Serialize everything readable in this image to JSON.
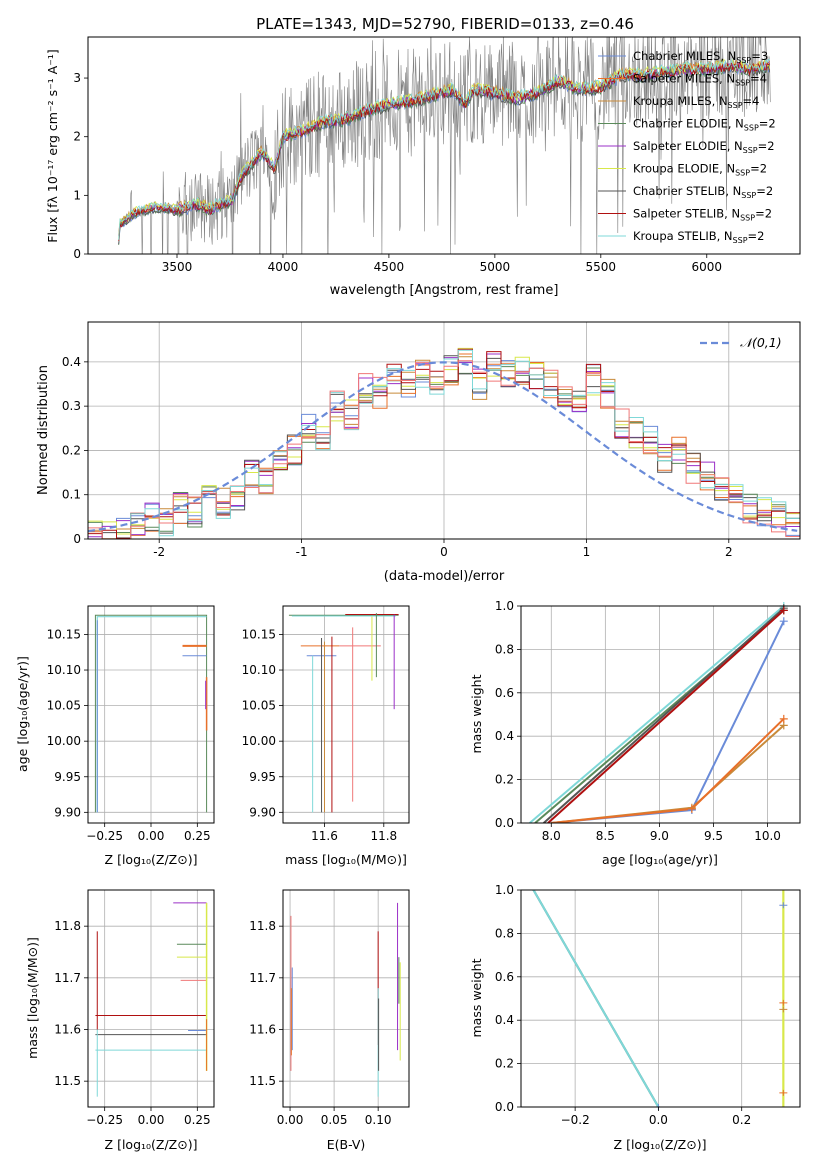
{
  "figure": {
    "title": "PLATE=1343, MJD=52790, FIBERID=0133, z=0.46"
  },
  "chart_data": [
    {
      "id": "spectrum",
      "type": "line",
      "title": "PLATE=1343, MJD=52790, FIBERID=0133, z=0.46",
      "xlabel": "wavelength [Angstrom, rest frame]",
      "ylabel": "Flux [fλ 10⁻¹⁷ erg cm⁻² s⁻¹ A⁻¹]",
      "xlim": [
        3080,
        6440
      ],
      "ylim": [
        0,
        3.7
      ],
      "xticks": [
        3500,
        4000,
        4500,
        5000,
        5500,
        6000
      ],
      "yticks": [
        0,
        1,
        2,
        3
      ],
      "x_range_data": [
        3220,
        6300
      ],
      "legend_position": "upper right",
      "series": [
        {
          "name": "Chabrier MILES, N_SSP=3",
          "color": "#6a8bd8"
        },
        {
          "name": "Salpeter MILES, N_SSP=4",
          "color": "#e8702a"
        },
        {
          "name": "Kroupa MILES, N_SSP=4",
          "color": "#c88a3a"
        },
        {
          "name": "Chabrier ELODIE, N_SSP=2",
          "color": "#5a8a5a"
        },
        {
          "name": "Salpeter ELODIE, N_SSP=2",
          "color": "#9b30c8"
        },
        {
          "name": "Kroupa ELODIE, N_SSP=2",
          "color": "#d8e84a"
        },
        {
          "name": "Chabrier STELIB, N_SSP=2",
          "color": "#555555"
        },
        {
          "name": "Salpeter STELIB, N_SSP=2",
          "color": "#b01010"
        },
        {
          "name": "Kroupa STELIB, N_SSP=2",
          "color": "#7fd8d8"
        }
      ],
      "data_series": {
        "name": "data",
        "color": "#808080"
      },
      "model_profile": {
        "x": [
          3220,
          3230,
          3300,
          3400,
          3500,
          3600,
          3650,
          3700,
          3760,
          3800,
          3900,
          3960,
          4000,
          4100,
          4200,
          4300,
          4400,
          4500,
          4600,
          4700,
          4800,
          4860,
          4900,
          5000,
          5100,
          5200,
          5300,
          5400,
          5500,
          5600,
          5700,
          5800,
          5900,
          6000,
          6100,
          6200,
          6300
        ],
        "y": [
          0.0,
          0.5,
          0.7,
          0.8,
          0.75,
          0.85,
          0.75,
          0.85,
          0.9,
          1.3,
          1.75,
          1.45,
          2.0,
          2.1,
          2.25,
          2.3,
          2.45,
          2.55,
          2.6,
          2.7,
          2.8,
          2.55,
          2.8,
          2.75,
          2.65,
          2.75,
          2.95,
          2.8,
          2.85,
          3.05,
          3.05,
          3.1,
          3.15,
          3.15,
          3.2,
          3.15,
          3.2
        ]
      }
    },
    {
      "id": "residuals",
      "type": "line",
      "xlabel": "(data-model)/error",
      "ylabel": "Normed distribution",
      "xlim": [
        -2.5,
        2.5
      ],
      "ylim": [
        0,
        0.49
      ],
      "xticks": [
        -2,
        -1,
        0,
        1,
        2
      ],
      "yticks": [
        0.0,
        0.1,
        0.2,
        0.3,
        0.4
      ],
      "grid": true,
      "legend_position": "upper right",
      "reference_curve": {
        "name": "𝒩(0,1)",
        "color": "#6a8bd8",
        "style": "dashed",
        "mu": 0,
        "sigma": 1
      },
      "histogram_bin_width": 0.1,
      "histogram_base": {
        "x_centers": [
          -2.45,
          -2.35,
          -2.25,
          -2.15,
          -2.05,
          -1.95,
          -1.85,
          -1.75,
          -1.65,
          -1.55,
          -1.45,
          -1.35,
          -1.25,
          -1.15,
          -1.05,
          -0.95,
          -0.85,
          -0.75,
          -0.65,
          -0.55,
          -0.45,
          -0.35,
          -0.25,
          -0.15,
          -0.05,
          0.05,
          0.15,
          0.25,
          0.35,
          0.45,
          0.55,
          0.65,
          0.75,
          0.85,
          0.95,
          1.05,
          1.15,
          1.25,
          1.35,
          1.45,
          1.55,
          1.65,
          1.75,
          1.85,
          1.95,
          2.05,
          2.15,
          2.25,
          2.35,
          2.45
        ],
        "values": [
          0.01,
          0.01,
          0.02,
          0.03,
          0.05,
          0.04,
          0.07,
          0.06,
          0.09,
          0.08,
          0.1,
          0.15,
          0.13,
          0.18,
          0.2,
          0.25,
          0.22,
          0.3,
          0.28,
          0.34,
          0.33,
          0.36,
          0.35,
          0.37,
          0.36,
          0.38,
          0.4,
          0.35,
          0.39,
          0.37,
          0.38,
          0.37,
          0.35,
          0.32,
          0.3,
          0.36,
          0.33,
          0.26,
          0.24,
          0.22,
          0.18,
          0.2,
          0.16,
          0.14,
          0.11,
          0.09,
          0.07,
          0.06,
          0.05,
          0.04
        ]
      },
      "histogram_colors": [
        "#6a8bd8",
        "#e8702a",
        "#c88a3a",
        "#5a8a5a",
        "#9b30c8",
        "#d8e84a",
        "#555555",
        "#b01010",
        "#7fd8d8",
        "#f07878"
      ]
    },
    {
      "id": "age-vs-Z",
      "type": "scatter",
      "xlabel": "Z [log₁₀(Z/Z⊙)]",
      "ylabel": "age  [log₁₀(age/yr)]",
      "xlim": [
        -0.34,
        0.34
      ],
      "ylim": [
        9.885,
        10.19
      ],
      "xticks": [
        -0.25,
        0.0,
        0.25
      ],
      "xtick_labels": [
        "−0.25",
        "0.00",
        "0.25"
      ],
      "yticks": [
        9.9,
        9.95,
        10.0,
        10.05,
        10.1,
        10.15
      ],
      "ytick_labels": [
        "9.90",
        "9.95",
        "10.00",
        "10.05",
        "10.10",
        "10.15"
      ],
      "grid": true
    },
    {
      "id": "age-vs-mass",
      "type": "scatter",
      "xlabel": "mass [log₁₀(M/M⊙)]",
      "ylabel": "",
      "xlim": [
        11.46,
        11.885
      ],
      "ylim": [
        9.885,
        10.19
      ],
      "xticks": [
        11.6,
        11.8
      ],
      "xtick_labels": [
        "11.6",
        "11.8"
      ],
      "yticks": [
        9.9,
        9.95,
        10.0,
        10.05,
        10.1,
        10.15
      ],
      "ytick_labels": [
        "9.90",
        "9.95",
        "10.00",
        "10.05",
        "10.10",
        "10.15"
      ],
      "grid": true
    },
    {
      "id": "mass-weight-vs-age",
      "type": "line",
      "xlabel": "age  [log₁₀(age/yr)]",
      "ylabel": "mass weight",
      "xlim": [
        7.72,
        10.3
      ],
      "ylim": [
        0,
        1
      ],
      "xticks": [
        8.0,
        8.5,
        9.0,
        9.5,
        10.0
      ],
      "xtick_labels": [
        "8.0",
        "8.5",
        "9.0",
        "9.5",
        "10.0"
      ],
      "yticks": [
        0.0,
        0.2,
        0.4,
        0.6,
        0.8,
        1.0
      ],
      "ytick_labels": [
        "0.0",
        "0.2",
        "0.4",
        "0.6",
        "0.8",
        "1.0"
      ],
      "grid": true,
      "series": [
        {
          "x": [
            7.8,
            10.15
          ],
          "y": [
            0,
            1.0
          ],
          "color": "#7fd8d8"
        },
        {
          "x": [
            7.85,
            10.15
          ],
          "y": [
            0,
            0.98
          ],
          "color": "#5a8a5a"
        },
        {
          "x": [
            7.93,
            10.15
          ],
          "y": [
            0,
            0.99
          ],
          "color": "#555555"
        },
        {
          "x": [
            7.97,
            10.15
          ],
          "y": [
            0,
            0.98
          ],
          "color": "#b01010"
        },
        {
          "x": [
            8.0,
            9.3,
            10.15
          ],
          "y": [
            0,
            0.06,
            0.93
          ],
          "color": "#6a8bd8"
        },
        {
          "x": [
            8.0,
            9.3,
            10.15
          ],
          "y": [
            0,
            0.07,
            0.45
          ],
          "color": "#c88a3a"
        },
        {
          "x": [
            8.0,
            9.3,
            10.15
          ],
          "y": [
            0,
            0.065,
            0.48
          ],
          "color": "#e8702a"
        }
      ]
    },
    {
      "id": "mass-vs-Z",
      "type": "scatter",
      "xlabel": "Z [log₁₀(Z/Z⊙)]",
      "ylabel": "mass [log₁₀(M/M⊙)]",
      "xlim": [
        -0.34,
        0.34
      ],
      "ylim": [
        11.45,
        11.87
      ],
      "xticks": [
        -0.25,
        0.0,
        0.25
      ],
      "xtick_labels": [
        "−0.25",
        "0.00",
        "0.25"
      ],
      "yticks": [
        11.5,
        11.6,
        11.7,
        11.8
      ],
      "ytick_labels": [
        "11.5",
        "11.6",
        "11.7",
        "11.8"
      ],
      "grid": true
    },
    {
      "id": "mass-vs-EBV",
      "type": "scatter",
      "xlabel": "E(B-V)",
      "ylabel": "",
      "xlim": [
        -0.008,
        0.135
      ],
      "ylim": [
        11.45,
        11.87
      ],
      "xticks": [
        0.0,
        0.05,
        0.1
      ],
      "xtick_labels": [
        "0.00",
        "0.05",
        "0.10"
      ],
      "yticks": [
        11.5,
        11.6,
        11.7,
        11.8
      ],
      "ytick_labels": [
        "11.5",
        "11.6",
        "11.7",
        "11.8"
      ],
      "grid": true
    },
    {
      "id": "mass-weight-vs-Z",
      "type": "line",
      "xlabel": "Z [log₁₀(Z/Z⊙)]",
      "ylabel": "mass weight",
      "xlim": [
        -0.33,
        0.34
      ],
      "ylim": [
        0,
        1
      ],
      "xticks": [
        -0.2,
        0.0,
        0.2
      ],
      "xtick_labels": [
        "−0.2",
        "0.0",
        "0.2"
      ],
      "yticks": [
        0.0,
        0.2,
        0.4,
        0.6,
        0.8,
        1.0
      ],
      "ytick_labels": [
        "0.0",
        "0.2",
        "0.4",
        "0.6",
        "0.8",
        "1.0"
      ],
      "grid": true
    }
  ]
}
